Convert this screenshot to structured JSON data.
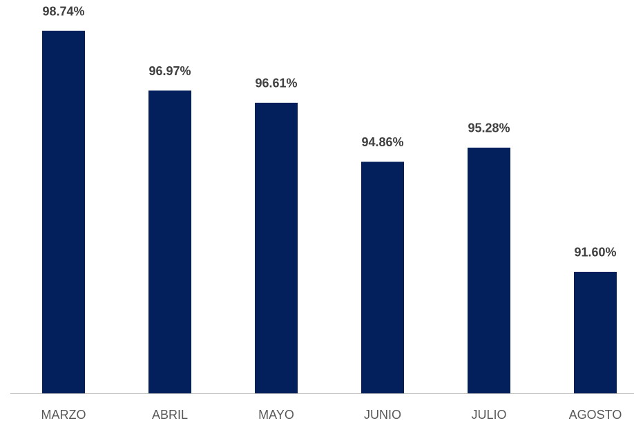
{
  "chart_data": {
    "type": "bar",
    "categories": [
      "MARZO",
      "ABRIL",
      "MAYO",
      "JUNIO",
      "JULIO",
      "AGOSTO"
    ],
    "values": [
      98.74,
      96.97,
      96.61,
      94.86,
      95.28,
      91.6
    ],
    "value_labels": [
      "98.74%",
      "96.97%",
      "96.61%",
      "94.86%",
      "95.28%",
      "91.60%"
    ],
    "color": "#031f5c",
    "ylim": [
      88,
      99
    ]
  }
}
